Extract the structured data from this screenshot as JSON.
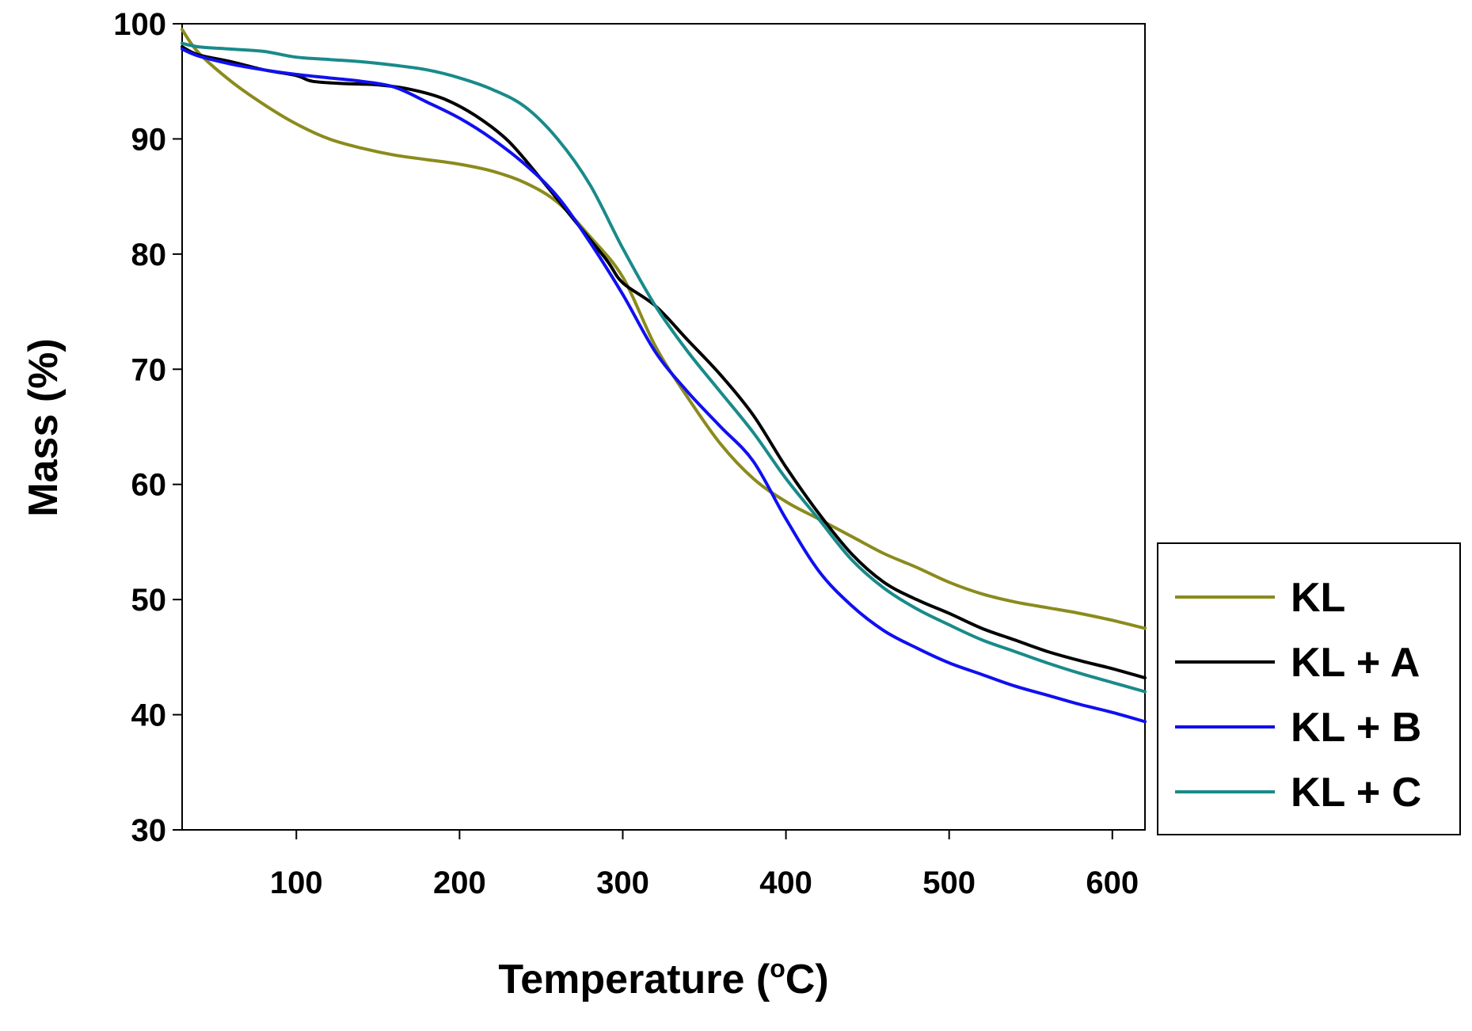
{
  "chart_data": {
    "type": "line",
    "title": "",
    "xlabel": "Temperature (",
    "xlabel_sup": "o",
    "xlabel_tail": "C)",
    "ylabel": "Mass (%)",
    "xlim": [
      30,
      620
    ],
    "ylim": [
      30,
      100
    ],
    "xticks": [
      100,
      200,
      300,
      400,
      500,
      600
    ],
    "yticks": [
      30,
      40,
      50,
      60,
      70,
      80,
      90,
      100
    ],
    "grid": false,
    "legend_position": "right",
    "series": [
      {
        "name": "KL",
        "color": "#8B8B1E",
        "x": [
          30,
          40,
          60,
          80,
          100,
          120,
          140,
          160,
          180,
          200,
          220,
          240,
          260,
          280,
          300,
          320,
          340,
          360,
          380,
          400,
          420,
          440,
          460,
          480,
          500,
          520,
          540,
          560,
          580,
          600,
          620
        ],
        "y": [
          99.5,
          97.5,
          95.0,
          93.0,
          91.3,
          90.0,
          89.2,
          88.6,
          88.2,
          87.8,
          87.2,
          86.2,
          84.5,
          81.5,
          78.0,
          72.0,
          67.5,
          63.5,
          60.5,
          58.5,
          57.0,
          55.5,
          54.0,
          52.8,
          51.5,
          50.5,
          49.8,
          49.3,
          48.8,
          48.2,
          47.5
        ]
      },
      {
        "name": "KL + A",
        "color": "#000000",
        "x": [
          30,
          40,
          60,
          80,
          100,
          110,
          130,
          150,
          170,
          190,
          210,
          230,
          250,
          270,
          290,
          300,
          320,
          340,
          360,
          380,
          400,
          420,
          440,
          460,
          480,
          500,
          520,
          540,
          560,
          580,
          600,
          620
        ],
        "y": [
          98.0,
          97.3,
          96.7,
          96.0,
          95.5,
          95.0,
          94.8,
          94.7,
          94.3,
          93.5,
          92.0,
          89.8,
          86.5,
          83.0,
          79.5,
          77.5,
          75.5,
          72.5,
          69.5,
          66.0,
          61.5,
          57.5,
          54.0,
          51.5,
          50.0,
          48.8,
          47.5,
          46.5,
          45.5,
          44.7,
          44.0,
          43.2
        ]
      },
      {
        "name": "KL + B",
        "color": "#1010F0",
        "x": [
          30,
          40,
          60,
          80,
          100,
          120,
          140,
          160,
          180,
          200,
          220,
          240,
          260,
          280,
          300,
          320,
          340,
          360,
          380,
          400,
          420,
          440,
          460,
          480,
          500,
          520,
          540,
          560,
          580,
          600,
          620
        ],
        "y": [
          97.8,
          97.2,
          96.5,
          96.0,
          95.6,
          95.3,
          95.0,
          94.5,
          93.2,
          91.8,
          90.0,
          87.8,
          85.0,
          81.0,
          76.5,
          71.5,
          68.0,
          65.0,
          62.0,
          57.0,
          52.5,
          49.5,
          47.3,
          45.8,
          44.5,
          43.5,
          42.5,
          41.7,
          40.9,
          40.2,
          39.4
        ]
      },
      {
        "name": "KL + C",
        "color": "#1A8A8A",
        "x": [
          30,
          40,
          60,
          80,
          100,
          120,
          140,
          160,
          180,
          200,
          220,
          240,
          260,
          280,
          300,
          320,
          340,
          360,
          380,
          400,
          420,
          440,
          460,
          480,
          500,
          520,
          540,
          560,
          580,
          600,
          620
        ],
        "y": [
          98.3,
          98.0,
          97.8,
          97.6,
          97.1,
          96.9,
          96.7,
          96.4,
          96.0,
          95.3,
          94.3,
          92.8,
          90.0,
          86.0,
          80.5,
          75.5,
          71.5,
          68.0,
          64.5,
          60.5,
          57.0,
          53.5,
          51.0,
          49.2,
          47.8,
          46.5,
          45.5,
          44.5,
          43.6,
          42.8,
          42.0
        ]
      }
    ]
  }
}
